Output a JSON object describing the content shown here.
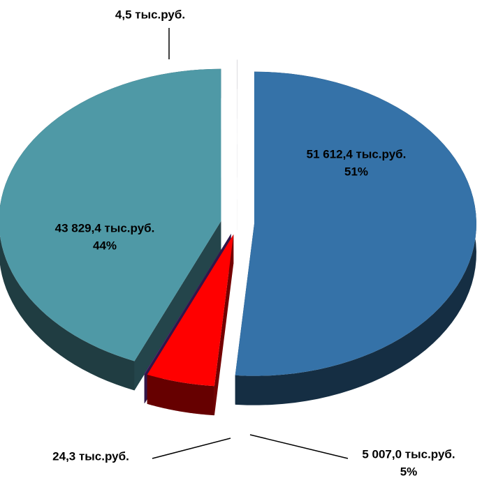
{
  "chart_data": {
    "type": "pie3d",
    "values": [
      51612.4,
      5007.0,
      24.3,
      43829.4,
      4.5
    ],
    "value_labels": [
      "51 612,4 тыс.руб.",
      "5 007,0 тыс.руб.",
      "24,3 тыс.руб.",
      "43 829,4  тыс.руб.",
      "4,5 тыс.руб."
    ],
    "percents": [
      51,
      5,
      null,
      44,
      null
    ],
    "percent_labels": [
      "51%",
      "5%",
      null,
      "44%",
      null
    ],
    "colors": [
      "#3572a8",
      "#ff0000",
      "#7030a0",
      "#4f99a6",
      "#2e2b50"
    ]
  }
}
